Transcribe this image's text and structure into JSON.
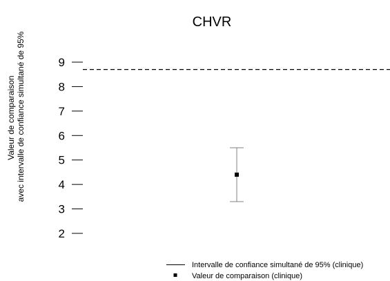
{
  "chart_data": {
    "type": "scatter",
    "title": "CHVR",
    "ylabel_lines": [
      "Valeur de comparaison",
      "avec intervalle de confiance simultané de 95%"
    ],
    "xlabel": "",
    "ylim": [
      2,
      9
    ],
    "yticks": [
      {
        "value": 9,
        "label": "9"
      },
      {
        "value": 8,
        "label": "8"
      },
      {
        "value": 7,
        "label": "7"
      },
      {
        "value": 6,
        "label": "6"
      },
      {
        "value": 5,
        "label": "5"
      },
      {
        "value": 4,
        "label": "4"
      },
      {
        "value": 3,
        "label": "3"
      },
      {
        "value": 2,
        "label": "2"
      }
    ],
    "reference_line": {
      "value": 8.7,
      "style": "dashed"
    },
    "points": [
      {
        "value": 4.4,
        "ci_lower": 3.3,
        "ci_upper": 5.5
      }
    ],
    "legend": {
      "placement": "bottom-right",
      "entries": [
        {
          "symbol": "line",
          "label": "Intervalle de confiance simultané de 95% (clinique)"
        },
        {
          "symbol": "square",
          "label": "Valeur de comparaison (clinique)"
        }
      ]
    },
    "colors": {
      "point": "#000000",
      "errorbar": "#808080",
      "reference": "#000000",
      "axis": "#000000"
    }
  }
}
